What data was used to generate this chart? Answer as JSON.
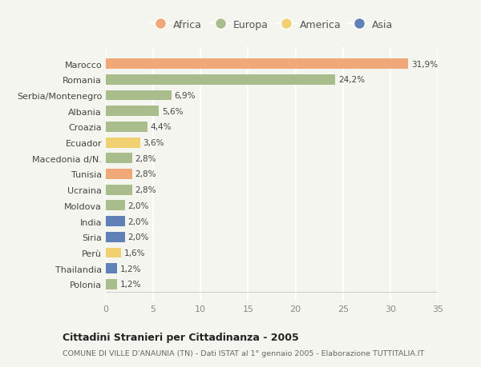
{
  "categories": [
    "Marocco",
    "Romania",
    "Serbia/Montenegro",
    "Albania",
    "Croazia",
    "Ecuador",
    "Macedonia d/N.",
    "Tunisia",
    "Ucraina",
    "Moldova",
    "India",
    "Siria",
    "Perù",
    "Thailandia",
    "Polonia"
  ],
  "values": [
    31.9,
    24.2,
    6.9,
    5.6,
    4.4,
    3.6,
    2.8,
    2.8,
    2.8,
    2.0,
    2.0,
    2.0,
    1.6,
    1.2,
    1.2
  ],
  "bar_colors": [
    "#f0a878",
    "#a8bc8c",
    "#a8bc8c",
    "#a8bc8c",
    "#a8bc8c",
    "#f0d070",
    "#a8bc8c",
    "#f0a878",
    "#a8bc8c",
    "#a8bc8c",
    "#6080b8",
    "#6080b8",
    "#f0d070",
    "#6080b8",
    "#a8bc8c"
  ],
  "labels": [
    "31,9%",
    "24,2%",
    "6,9%",
    "5,6%",
    "4,4%",
    "3,6%",
    "2,8%",
    "2,8%",
    "2,8%",
    "2,0%",
    "2,0%",
    "2,0%",
    "1,6%",
    "1,2%",
    "1,2%"
  ],
  "legend_labels": [
    "Africa",
    "Europa",
    "America",
    "Asia"
  ],
  "legend_colors": [
    "#f0a878",
    "#a8bc8c",
    "#f0d070",
    "#6080b8"
  ],
  "xlim": [
    0,
    35
  ],
  "xticks": [
    0,
    5,
    10,
    15,
    20,
    25,
    30,
    35
  ],
  "title": "Cittadini Stranieri per Cittadinanza - 2005",
  "subtitle": "COMUNE DI VILLE D'ANAUNIA (TN) - Dati ISTAT al 1° gennaio 2005 - Elaborazione TUTTITALIA.IT",
  "bg_color": "#f5f5f0",
  "grid_color": "#ffffff",
  "bar_height": 0.65
}
